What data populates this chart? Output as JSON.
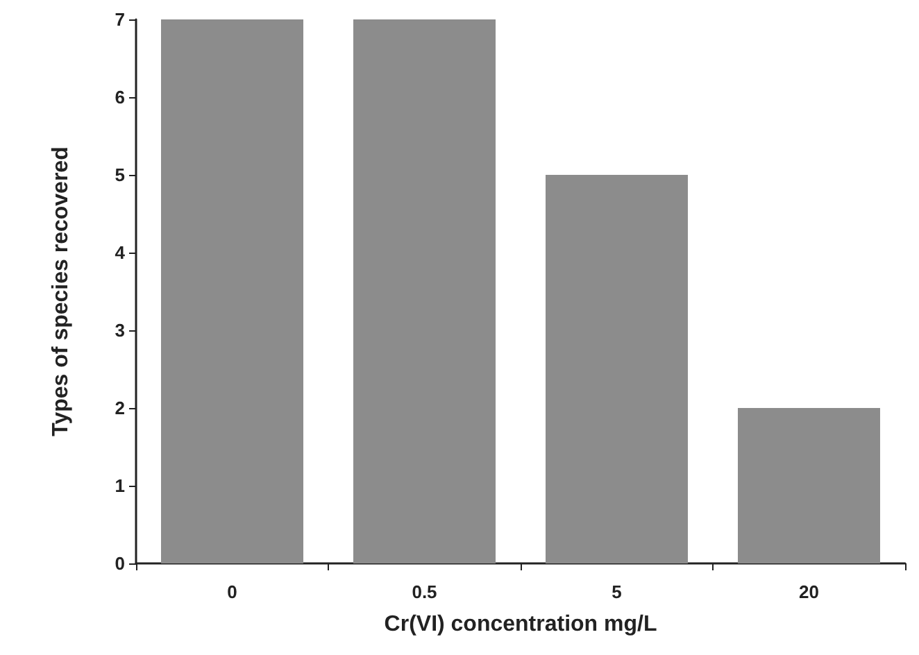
{
  "chart_data": {
    "type": "bar",
    "xlabel": "Cr(VI) concentration mg/L",
    "ylabel": "Types of species recovered",
    "categories": [
      "0",
      "0.5",
      "5",
      "20"
    ],
    "values": [
      7,
      7,
      5,
      2
    ],
    "color": "#8c8c8c",
    "ylim": [
      0,
      7
    ],
    "yticks": [
      0,
      1,
      2,
      3,
      4,
      5,
      6,
      7
    ],
    "grid": false
  }
}
